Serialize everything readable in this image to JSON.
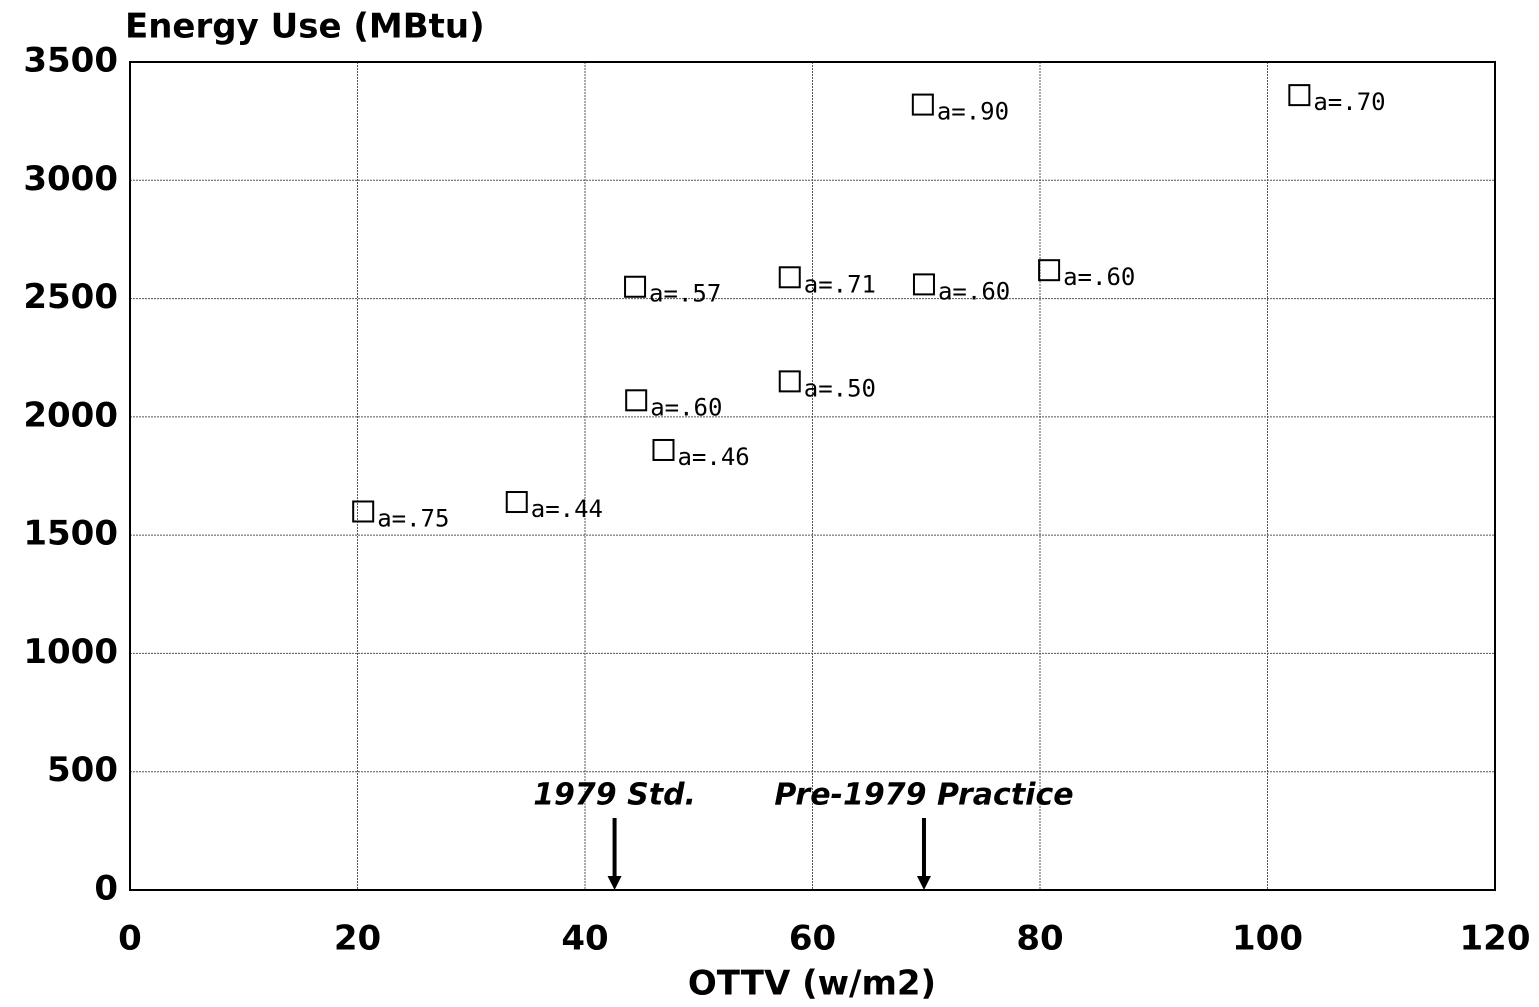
{
  "chart_data": {
    "type": "scatter",
    "title": "Energy Use (MBtu)",
    "x_label": "OTTV (w/m2)",
    "x": [
      20.5,
      34,
      44.4,
      44.5,
      46.9,
      58,
      58,
      69.7,
      69.8,
      80.8,
      102.8
    ],
    "values": [
      1600,
      1640,
      2550,
      2070,
      1860,
      2590,
      2150,
      3320,
      2560,
      2620,
      3360
    ],
    "labels": [
      "a=.75",
      "a=.44",
      "a=.57",
      "a=.60",
      "a=.46",
      "a=.71",
      "a=.50",
      "a=.90",
      "a=.60",
      "a=.60",
      "a=.70"
    ],
    "color": "#000000",
    "xlim": [
      0,
      120
    ],
    "xticks": [
      0,
      20,
      40,
      60,
      80,
      100,
      120
    ],
    "ylim": [
      0,
      3500
    ],
    "yticks": [
      0,
      500,
      1000,
      1500,
      2000,
      2500,
      3000,
      3500
    ],
    "grid": true,
    "annotations": [
      {
        "text": "1979 Std.",
        "x": 42.6
      },
      {
        "text": "Pre-1979 Practice",
        "x": 69.8
      }
    ]
  }
}
